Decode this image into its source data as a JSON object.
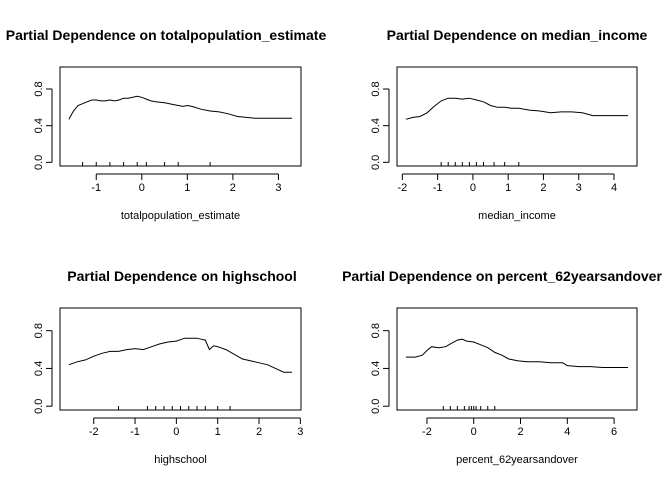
{
  "chart_data": [
    {
      "type": "line",
      "title": "Partial Dependence on totalpopulation_estimate",
      "xlabel": "totalpopulation_estimate",
      "ylabel": "",
      "xlim": [
        -1.6,
        3.3
      ],
      "ylim": [
        0,
        1
      ],
      "xticks": [
        -1,
        0,
        1,
        2,
        3
      ],
      "xtick_labels": [
        "-1",
        "0",
        "1",
        "2",
        "3"
      ],
      "yticks": [
        0.0,
        0.4,
        0.8
      ],
      "ytick_labels": [
        "0.0",
        "0.4",
        "0.8"
      ],
      "rug": [
        -1.3,
        -1.0,
        -0.7,
        -0.4,
        -0.1,
        0.1,
        0.5,
        0.8,
        1.5
      ],
      "series": [
        {
          "x": [
            -1.6,
            -1.5,
            -1.4,
            -1.3,
            -1.2,
            -1.1,
            -1.0,
            -0.9,
            -0.8,
            -0.7,
            -0.6,
            -0.5,
            -0.4,
            -0.3,
            -0.2,
            -0.1,
            0.0,
            0.1,
            0.2,
            0.3,
            0.5,
            0.7,
            0.9,
            1.0,
            1.1,
            1.3,
            1.5,
            1.7,
            1.9,
            2.1,
            2.3,
            2.5,
            2.7,
            2.9,
            3.1,
            3.3
          ],
          "y": [
            0.47,
            0.56,
            0.62,
            0.64,
            0.66,
            0.68,
            0.68,
            0.67,
            0.67,
            0.68,
            0.67,
            0.68,
            0.7,
            0.7,
            0.71,
            0.72,
            0.71,
            0.69,
            0.67,
            0.66,
            0.65,
            0.63,
            0.61,
            0.62,
            0.61,
            0.58,
            0.56,
            0.55,
            0.53,
            0.5,
            0.49,
            0.48,
            0.48,
            0.48,
            0.48,
            0.48
          ]
        }
      ]
    },
    {
      "type": "line",
      "title": "Partial Dependence on median_income",
      "xlabel": "median_income",
      "ylabel": "",
      "xlim": [
        -1.9,
        4.4
      ],
      "ylim": [
        0,
        1
      ],
      "xticks": [
        -2,
        -1,
        0,
        1,
        2,
        3,
        4
      ],
      "xtick_labels": [
        "-2",
        "-1",
        "0",
        "1",
        "2",
        "3",
        "4"
      ],
      "yticks": [
        0.0,
        0.4,
        0.8
      ],
      "ytick_labels": [
        "0.0",
        "0.4",
        "0.8"
      ],
      "rug": [
        -0.9,
        -0.7,
        -0.5,
        -0.3,
        -0.1,
        0.1,
        0.3,
        0.6,
        0.9,
        1.3
      ],
      "series": [
        {
          "x": [
            -1.9,
            -1.7,
            -1.5,
            -1.3,
            -1.1,
            -0.9,
            -0.7,
            -0.5,
            -0.3,
            -0.1,
            0.1,
            0.3,
            0.5,
            0.7,
            0.9,
            1.1,
            1.3,
            1.6,
            1.9,
            2.2,
            2.5,
            2.8,
            3.1,
            3.4,
            3.7,
            4.0,
            4.4
          ],
          "y": [
            0.47,
            0.49,
            0.5,
            0.54,
            0.61,
            0.67,
            0.7,
            0.7,
            0.69,
            0.7,
            0.68,
            0.66,
            0.62,
            0.6,
            0.6,
            0.59,
            0.59,
            0.57,
            0.56,
            0.54,
            0.55,
            0.55,
            0.54,
            0.51,
            0.51,
            0.51,
            0.51
          ]
        }
      ]
    },
    {
      "type": "line",
      "title": "Partial Dependence on highschool",
      "xlabel": "highschool",
      "ylabel": "",
      "xlim": [
        -2.6,
        2.8
      ],
      "ylim": [
        0,
        1
      ],
      "xticks": [
        -2,
        -1,
        0,
        1,
        2,
        3
      ],
      "xtick_labels": [
        "-2",
        "-1",
        "0",
        "1",
        "2",
        "3"
      ],
      "yticks": [
        0.0,
        0.4,
        0.8
      ],
      "ytick_labels": [
        "0.0",
        "0.4",
        "0.8"
      ],
      "rug": [
        -1.4,
        -0.7,
        -0.5,
        -0.3,
        -0.1,
        0.1,
        0.3,
        0.5,
        0.7,
        1.0,
        1.3
      ],
      "series": [
        {
          "x": [
            -2.6,
            -2.4,
            -2.2,
            -2.0,
            -1.8,
            -1.6,
            -1.4,
            -1.2,
            -1.0,
            -0.8,
            -0.6,
            -0.4,
            -0.2,
            0.0,
            0.2,
            0.3,
            0.4,
            0.5,
            0.6,
            0.7,
            0.8,
            0.9,
            1.0,
            1.2,
            1.4,
            1.6,
            1.8,
            2.0,
            2.2,
            2.4,
            2.6,
            2.8
          ],
          "y": [
            0.44,
            0.47,
            0.49,
            0.53,
            0.56,
            0.58,
            0.58,
            0.6,
            0.61,
            0.6,
            0.63,
            0.66,
            0.68,
            0.69,
            0.72,
            0.72,
            0.72,
            0.72,
            0.71,
            0.7,
            0.6,
            0.64,
            0.63,
            0.6,
            0.55,
            0.5,
            0.48,
            0.46,
            0.44,
            0.4,
            0.36,
            0.36
          ]
        }
      ]
    },
    {
      "type": "line",
      "title": "Partial Dependence on percent_62yearsandover",
      "xlabel": "percent_62yearsandover",
      "ylabel": "",
      "xlim": [
        -2.9,
        6.6
      ],
      "ylim": [
        0,
        1
      ],
      "xticks": [
        -2,
        0,
        2,
        4,
        6
      ],
      "xtick_labels": [
        "-2",
        "0",
        "2",
        "4",
        "6"
      ],
      "yticks": [
        0.0,
        0.4,
        0.8
      ],
      "ytick_labels": [
        "0.0",
        "0.4",
        "0.8"
      ],
      "rug": [
        -1.3,
        -1.0,
        -0.7,
        -0.4,
        -0.2,
        -0.1,
        0.0,
        0.1,
        0.3,
        0.6,
        0.9
      ],
      "series": [
        {
          "x": [
            -2.9,
            -2.5,
            -2.2,
            -2.0,
            -1.8,
            -1.5,
            -1.2,
            -1.0,
            -0.7,
            -0.5,
            -0.3,
            0.0,
            0.3,
            0.6,
            0.9,
            1.2,
            1.5,
            1.9,
            2.3,
            2.8,
            3.3,
            3.8,
            4.0,
            4.5,
            5.0,
            5.5,
            6.0,
            6.6
          ],
          "y": [
            0.52,
            0.52,
            0.54,
            0.59,
            0.63,
            0.62,
            0.63,
            0.66,
            0.7,
            0.71,
            0.69,
            0.68,
            0.65,
            0.62,
            0.57,
            0.54,
            0.5,
            0.48,
            0.47,
            0.47,
            0.46,
            0.46,
            0.43,
            0.42,
            0.42,
            0.41,
            0.41,
            0.41
          ]
        }
      ]
    }
  ]
}
